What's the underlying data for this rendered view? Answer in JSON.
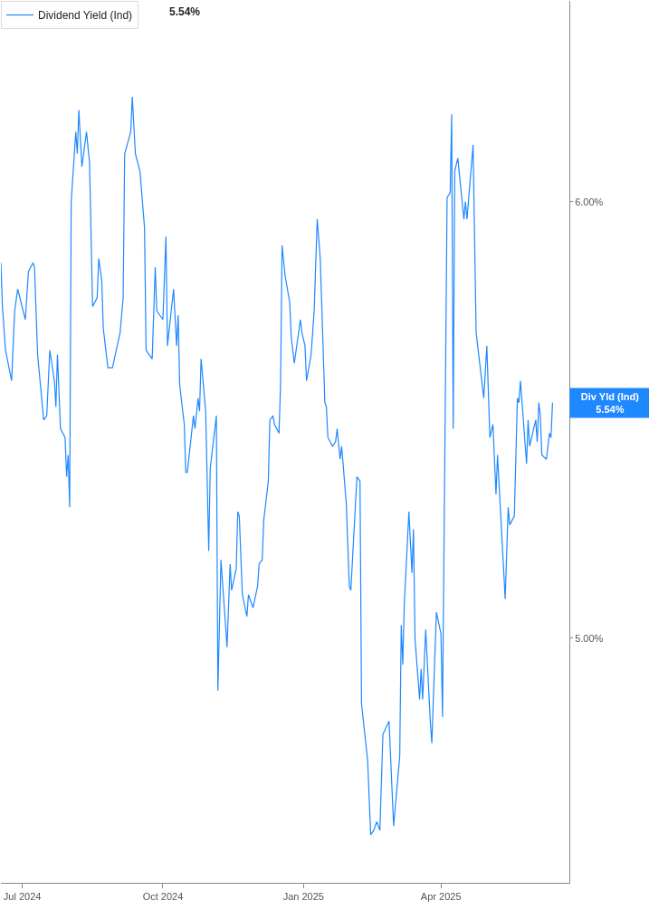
{
  "chart_data": {
    "type": "line",
    "annotations": [
      "5.54%",
      "Div Yld (Ind)\n5.54%"
    ],
    "x": [
      "2024-06-17",
      "2024-06-18",
      "2024-06-20",
      "2024-06-24",
      "2024-06-26",
      "2024-06-28",
      "2024-07-03",
      "2024-07-05",
      "2024-07-08",
      "2024-07-09",
      "2024-07-11",
      "2024-07-15",
      "2024-07-17",
      "2024-07-19",
      "2024-07-22",
      "2024-07-23",
      "2024-07-24",
      "2024-07-26",
      "2024-07-29",
      "2024-07-30",
      "2024-07-31",
      "2024-08-01",
      "2024-08-02",
      "2024-08-05",
      "2024-08-06",
      "2024-08-07",
      "2024-08-09",
      "2024-08-12",
      "2024-08-14",
      "2024-08-16",
      "2024-08-19",
      "2024-08-20",
      "2024-08-22",
      "2024-08-23",
      "2024-08-26",
      "2024-08-29",
      "2024-09-03",
      "2024-09-05",
      "2024-09-06",
      "2024-09-10",
      "2024-09-11",
      "2024-09-13",
      "2024-09-16",
      "2024-09-19",
      "2024-09-20",
      "2024-09-24",
      "2024-09-26",
      "2024-09-27",
      "2024-10-01",
      "2024-10-03",
      "2024-10-04",
      "2024-10-08",
      "2024-10-10",
      "2024-10-11",
      "2024-10-12",
      "2024-10-15",
      "2024-10-16",
      "2024-10-17",
      "2024-10-21",
      "2024-10-22",
      "2024-10-24",
      "2024-10-25",
      "2024-10-26",
      "2024-10-29",
      "2024-10-31",
      "2024-11-01",
      "2024-11-05",
      "2024-11-06",
      "2024-11-08",
      "2024-11-12",
      "2024-11-14",
      "2024-11-15",
      "2024-11-18",
      "2024-11-19",
      "2024-11-20",
      "2024-11-22",
      "2024-11-25",
      "2024-11-26",
      "2024-11-29",
      "2024-12-02",
      "2024-12-03",
      "2024-12-05",
      "2024-12-06",
      "2024-12-09",
      "2024-12-10",
      "2024-12-12",
      "2024-12-13",
      "2024-12-16",
      "2024-12-17",
      "2024-12-18",
      "2024-12-20",
      "2024-12-23",
      "2024-12-24",
      "2024-12-26",
      "2024-12-30",
      "2024-12-31",
      "2025-01-02",
      "2025-01-03",
      "2025-01-06",
      "2025-01-08",
      "2025-01-10",
      "2025-01-12",
      "2025-01-15",
      "2025-01-16",
      "2025-01-17",
      "2025-01-20",
      "2025-01-22",
      "2025-01-23",
      "2025-01-25",
      "2025-01-26",
      "2025-01-29",
      "2025-01-31",
      "2025-02-01",
      "2025-02-05",
      "2025-02-07",
      "2025-02-08",
      "2025-02-12",
      "2025-02-14",
      "2025-02-16",
      "2025-02-18",
      "2025-02-20",
      "2025-02-22",
      "2025-02-26",
      "2025-03-01",
      "2025-03-05",
      "2025-03-06",
      "2025-03-07",
      "2025-03-08",
      "2025-03-11",
      "2025-03-13",
      "2025-03-14",
      "2025-03-15",
      "2025-03-18",
      "2025-03-19",
      "2025-03-20",
      "2025-03-22",
      "2025-03-25",
      "2025-03-26",
      "2025-03-29",
      "2025-04-01",
      "2025-04-02",
      "2025-04-05",
      "2025-04-07",
      "2025-04-08",
      "2025-04-09",
      "2025-04-10",
      "2025-04-12",
      "2025-04-16",
      "2025-04-17",
      "2025-04-18",
      "2025-04-22",
      "2025-04-24",
      "2025-04-25",
      "2025-04-29",
      "2025-05-01",
      "2025-05-03",
      "2025-05-05",
      "2025-05-07",
      "2025-05-08",
      "2025-05-13",
      "2025-05-15",
      "2025-05-16",
      "2025-05-19",
      "2025-05-21",
      "2025-05-22",
      "2025-05-23",
      "2025-05-27",
      "2025-05-28",
      "2025-05-29",
      "2025-06-02",
      "2025-06-03",
      "2025-06-04",
      "2025-06-05",
      "2025-06-06",
      "2025-06-09",
      "2025-06-11",
      "2025-06-12",
      "2025-06-13"
    ],
    "series": [
      {
        "name": "Dividend Yield (Ind)",
        "color": "#1e88ff",
        "values": [
          5.86,
          5.76,
          5.66,
          5.59,
          5.75,
          5.8,
          5.73,
          5.84,
          5.86,
          5.85,
          5.65,
          5.5,
          5.51,
          5.66,
          5.59,
          5.53,
          5.65,
          5.48,
          5.46,
          5.37,
          5.42,
          5.3,
          6.0,
          6.16,
          6.11,
          6.21,
          6.08,
          6.16,
          6.09,
          5.76,
          5.78,
          5.87,
          5.82,
          5.71,
          5.62,
          5.62,
          5.7,
          5.78,
          6.11,
          6.16,
          6.24,
          6.11,
          6.07,
          5.94,
          5.66,
          5.64,
          5.85,
          5.75,
          5.73,
          5.92,
          5.67,
          5.8,
          5.67,
          5.74,
          5.58,
          5.49,
          5.38,
          5.38,
          5.51,
          5.48,
          5.55,
          5.52,
          5.64,
          5.52,
          5.2,
          5.39,
          5.51,
          4.88,
          5.18,
          4.98,
          5.17,
          5.11,
          5.16,
          5.29,
          5.28,
          5.1,
          5.05,
          5.1,
          5.07,
          5.12,
          5.17,
          5.18,
          5.27,
          5.36,
          5.5,
          5.51,
          5.49,
          5.47,
          5.58,
          5.9,
          5.83,
          5.77,
          5.69,
          5.63,
          5.73,
          5.7,
          5.67,
          5.59,
          5.65,
          5.75,
          5.96,
          5.87,
          5.54,
          5.53,
          5.46,
          5.44,
          5.45,
          5.48,
          5.41,
          5.44,
          5.31,
          5.12,
          5.11,
          5.37,
          5.36,
          4.85,
          4.72,
          4.55,
          4.56,
          4.58,
          4.56,
          4.78,
          4.81,
          4.57,
          4.73,
          5.03,
          4.94,
          5.08,
          5.29,
          5.15,
          5.25,
          5.0,
          4.86,
          4.93,
          4.86,
          5.02,
          4.81,
          4.76,
          5.06,
          5.01,
          4.82,
          6.01,
          6.02,
          6.2,
          5.48,
          6.07,
          6.1,
          5.96,
          6.0,
          5.96,
          6.13,
          5.7,
          5.67,
          5.55,
          5.67,
          5.46,
          5.49,
          5.33,
          5.42,
          5.09,
          5.3,
          5.26,
          5.28,
          5.55,
          5.54,
          5.59,
          5.4,
          5.5,
          5.44,
          5.5,
          5.45,
          5.54,
          5.51,
          5.42,
          5.41,
          5.47,
          5.46,
          5.54
        ]
      }
    ],
    "xlim": [
      "2024-06-17",
      "2025-06-24"
    ],
    "xticks": [
      {
        "value": "2024-07-01",
        "label": "Jul 2024"
      },
      {
        "value": "2024-10-01",
        "label": "Oct 2024"
      },
      {
        "value": "2025-01-01",
        "label": "Jan 2025"
      },
      {
        "value": "2025-04-01",
        "label": "Apr 2025"
      }
    ],
    "ylim": [
      4.44,
      6.46
    ],
    "yticks": [
      {
        "value": 5,
        "label": "5.00%"
      },
      {
        "value": 6,
        "label": "6.00%"
      }
    ],
    "grid": false,
    "legend": "top left",
    "marker": "none",
    "line_style": "solid"
  }
}
